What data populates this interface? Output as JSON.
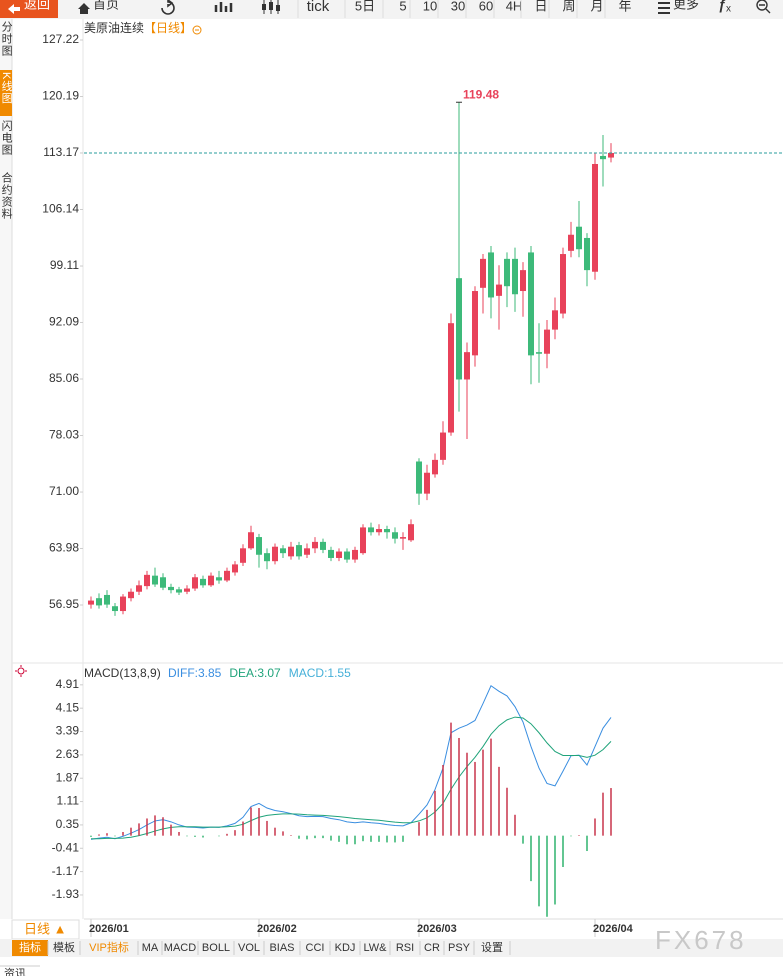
{
  "toolbar": {
    "back": "返回",
    "home": "首页",
    "periods": [
      "tick",
      "5日",
      "5",
      "10",
      "30",
      "60",
      "4H",
      "日",
      "周",
      "月",
      "年"
    ],
    "more": "更多"
  },
  "side_tabs": [
    "分时图",
    "K线图",
    "闪电图",
    "合约资料"
  ],
  "chart_data": [
    {
      "type": "candlestick",
      "title": "美原油连续",
      "subtitle": "【日线】",
      "up_color": "#e8425a",
      "down_color": "#3dba7a",
      "ylim": [
        50.11,
        129.46
      ],
      "yticks": [
        127.22,
        120.19,
        113.17,
        106.14,
        99.11,
        92.09,
        85.06,
        78.03,
        {
          "value": 71,
          "label": "71.00"
        },
        63.98,
        56.95
      ],
      "open": [
        57.0,
        57.8,
        58.2,
        56.8,
        56.2,
        57.8,
        58.6,
        59.3,
        60.6,
        60.4,
        59.2,
        58.9,
        58.6,
        59.0,
        60.2,
        59.4,
        60.4,
        60.0,
        61.0,
        62.2,
        64.0,
        65.4,
        63.4,
        62.4,
        64.0,
        63.0,
        64.4,
        63.2,
        64.0,
        64.8,
        63.8,
        62.8,
        63.6,
        62.6,
        63.4,
        66.6,
        66.0,
        66.4,
        66.0,
        65.2,
        65.0,
        74.8,
        70.8,
        73.2,
        75.0,
        78.4,
        97.6,
        85.0,
        88.0,
        96.4,
        100.8,
        95.4,
        100.0,
        100.0,
        96.0,
        100.8,
        88.4,
        88.2,
        91.2,
        93.2,
        101.0,
        104.0,
        102.6,
        98.4,
        112.8,
        112.6
      ],
      "high": [
        58.0,
        58.4,
        58.8,
        57.2,
        58.3,
        59.0,
        60.0,
        61.2,
        61.6,
        60.9,
        59.6,
        59.2,
        59.4,
        60.8,
        60.6,
        61.0,
        61.2,
        61.6,
        62.4,
        64.5,
        66.8,
        65.8,
        64.0,
        64.6,
        64.4,
        64.8,
        64.8,
        64.6,
        65.4,
        65.2,
        64.2,
        64.0,
        64.0,
        64.2,
        67.0,
        67.2,
        67.0,
        66.8,
        66.6,
        66.0,
        67.6,
        75.2,
        74.4,
        75.8,
        79.8,
        93.2,
        119.48,
        89.6,
        96.6,
        100.6,
        101.6,
        99.2,
        100.8,
        101.4,
        99.6,
        101.6,
        92.0,
        92.4,
        95.2,
        101.4,
        104.6,
        107.2,
        103.2,
        113.2,
        115.4,
        114.4
      ],
      "low": [
        56.5,
        56.5,
        56.6,
        55.6,
        55.8,
        57.4,
        58.2,
        58.9,
        59.2,
        58.8,
        58.4,
        58.2,
        58.3,
        58.7,
        59.1,
        59.2,
        59.6,
        59.8,
        60.6,
        61.8,
        63.8,
        61.6,
        61.4,
        62.0,
        62.8,
        62.6,
        62.6,
        62.8,
        63.4,
        63.4,
        62.4,
        62.4,
        62.2,
        62.2,
        63.2,
        65.6,
        65.6,
        65.2,
        64.6,
        63.8,
        64.8,
        69.4,
        70.0,
        72.8,
        74.4,
        78.0,
        81.0,
        77.6,
        86.6,
        93.2,
        92.6,
        91.2,
        94.0,
        93.4,
        92.8,
        84.4,
        84.6,
        86.4,
        90.0,
        92.6,
        100.2,
        100.2,
        96.6,
        97.4,
        109.0,
        112.0
      ],
      "close": [
        57.5,
        56.9,
        57.0,
        56.2,
        58.0,
        58.6,
        59.4,
        60.7,
        59.5,
        59.1,
        58.8,
        58.5,
        59.0,
        60.4,
        59.4,
        60.6,
        60.0,
        61.2,
        62.0,
        64.0,
        66.0,
        63.2,
        62.4,
        64.2,
        63.4,
        64.2,
        63.0,
        64.0,
        64.8,
        63.8,
        62.8,
        63.6,
        62.6,
        63.8,
        66.6,
        66.0,
        66.4,
        66.0,
        65.2,
        65.4,
        67.0,
        70.8,
        73.4,
        75.0,
        78.4,
        92.0,
        85.0,
        88.4,
        96.0,
        100.0,
        95.2,
        96.8,
        96.6,
        95.6,
        98.6,
        88.0,
        88.2,
        91.2,
        93.6,
        100.6,
        103.0,
        101.2,
        98.6,
        111.8,
        112.4,
        113.17
      ]
    },
    {
      "type": "macd",
      "title": "MACD(13,8,9)",
      "ylim": [
        -2.68,
        5.23
      ],
      "yticks": [
        4.91,
        4.15,
        3.39,
        2.63,
        1.87,
        1.11,
        0.35,
        -0.41,
        -1.17,
        -1.93
      ],
      "x_labels": [
        {
          "index": 0,
          "label": "2026/01"
        },
        {
          "index": 21,
          "label": "2026/02"
        },
        {
          "index": 41,
          "label": "2026/03"
        },
        {
          "index": 63,
          "label": "2026/04"
        }
      ],
      "up_color": "#c9344a",
      "down_color": "#2fb36e",
      "series": [
        {
          "name": "DIFF:3.85",
          "color": "#3a8ee0",
          "values": [
            -0.12,
            -0.08,
            -0.05,
            -0.1,
            -0.02,
            0.08,
            0.2,
            0.35,
            0.48,
            0.52,
            0.45,
            0.35,
            0.28,
            0.27,
            0.25,
            0.28,
            0.27,
            0.32,
            0.4,
            0.6,
            0.95,
            1.05,
            0.9,
            0.82,
            0.78,
            0.72,
            0.65,
            0.62,
            0.63,
            0.62,
            0.56,
            0.52,
            0.45,
            0.42,
            0.45,
            0.42,
            0.4,
            0.36,
            0.33,
            0.32,
            0.42,
            0.7,
            1.0,
            1.5,
            2.2,
            3.35,
            3.5,
            3.6,
            3.75,
            4.3,
            4.88,
            4.7,
            4.55,
            4.2,
            3.7,
            2.9,
            2.2,
            1.7,
            1.62,
            2.1,
            2.6,
            2.62,
            2.3,
            2.9,
            3.5,
            3.85
          ]
        },
        {
          "name": "DEA:3.07",
          "color": "#1fa37a",
          "values": [
            -0.1,
            -0.1,
            -0.09,
            -0.09,
            -0.08,
            -0.05,
            0.0,
            0.07,
            0.15,
            0.22,
            0.27,
            0.29,
            0.29,
            0.29,
            0.28,
            0.28,
            0.28,
            0.29,
            0.31,
            0.37,
            0.49,
            0.6,
            0.66,
            0.69,
            0.71,
            0.71,
            0.7,
            0.68,
            0.67,
            0.66,
            0.64,
            0.62,
            0.59,
            0.56,
            0.54,
            0.52,
            0.5,
            0.47,
            0.44,
            0.42,
            0.42,
            0.48,
            0.58,
            0.77,
            1.05,
            1.51,
            1.91,
            2.25,
            2.55,
            2.9,
            3.3,
            3.58,
            3.77,
            3.86,
            3.83,
            3.64,
            3.35,
            3.02,
            2.74,
            2.61,
            2.61,
            2.61,
            2.55,
            2.62,
            2.8,
            3.07
          ]
        },
        {
          "name": "MACD:1.55",
          "color": "#46b0d8",
          "bar": true,
          "values": [
            -0.04,
            0.04,
            0.08,
            -0.02,
            0.12,
            0.26,
            0.4,
            0.56,
            0.66,
            0.6,
            0.36,
            0.12,
            -0.02,
            -0.04,
            -0.06,
            0,
            -0.02,
            0.06,
            0.18,
            0.46,
            0.92,
            0.9,
            0.48,
            0.26,
            0.14,
            0.02,
            -0.1,
            -0.12,
            -0.08,
            -0.08,
            -0.16,
            -0.2,
            -0.28,
            -0.28,
            -0.18,
            -0.2,
            -0.2,
            -0.22,
            -0.22,
            -0.2,
            0,
            0.44,
            0.84,
            1.46,
            2.3,
            3.68,
            3.18,
            2.7,
            2.4,
            2.8,
            3.16,
            2.24,
            1.56,
            0.68,
            -0.26,
            -1.48,
            -2.3,
            -2.64,
            -2.24,
            -1.02,
            -0.02,
            0.02,
            -0.5,
            0.56,
            1.4,
            1.55
          ]
        }
      ]
    }
  ],
  "bottom_bar": {
    "period": "日线 ▲",
    "tabs": [
      "指标",
      "模板",
      "VIP指标",
      "MA",
      "MACD",
      "BOLL",
      "VOL",
      "BIAS",
      "CCI",
      "KDJ",
      "LW&",
      "RSI",
      "CR",
      "PSY",
      "设置"
    ]
  },
  "watermark": "FX678",
  "footer": "资讯"
}
